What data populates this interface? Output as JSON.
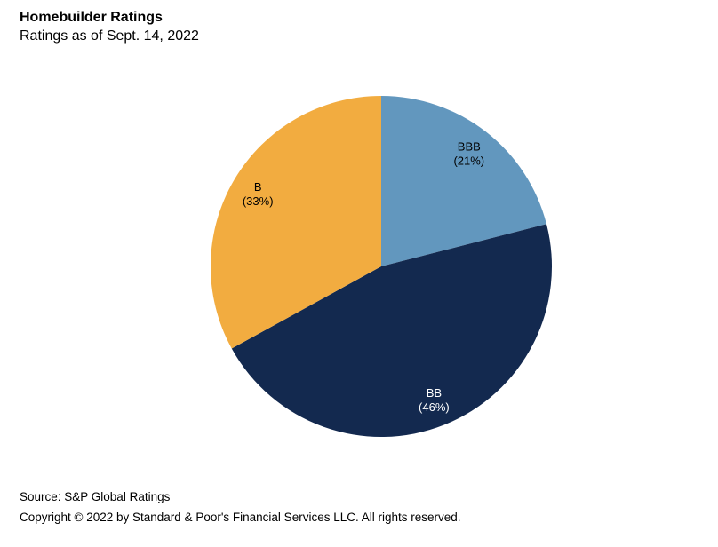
{
  "header": {
    "title": "Homebuilder Ratings",
    "subtitle": "Ratings as of Sept. 14, 2022"
  },
  "chart_data": {
    "type": "pie",
    "title": "Homebuilder Ratings",
    "subtitle": "Ratings as of Sept. 14, 2022",
    "categories": [
      "BBB",
      "BB",
      "B"
    ],
    "values": [
      21,
      46,
      33
    ],
    "unit": "%",
    "start_position": "12-o-clock",
    "direction": "clockwise",
    "legend_position": "none",
    "slices": [
      {
        "label": "BBB",
        "percent": 21,
        "color": "#6297BE",
        "label_color": "#000000",
        "label_text_line1": "BBB",
        "label_text_line2": "(21%)"
      },
      {
        "label": "BB",
        "percent": 46,
        "color": "#13294F",
        "label_color": "#FFFFFF",
        "label_text_line1": "BB",
        "label_text_line2": "(46%)"
      },
      {
        "label": "B",
        "percent": 33,
        "color": "#F2AC40",
        "label_color": "#000000",
        "label_text_line1": "B",
        "label_text_line2": "(33%)"
      }
    ]
  },
  "footer": {
    "source": "Source: S&P Global Ratings",
    "copyright": "Copyright © 2022 by Standard & Poor's Financial Services LLC. All rights reserved."
  }
}
